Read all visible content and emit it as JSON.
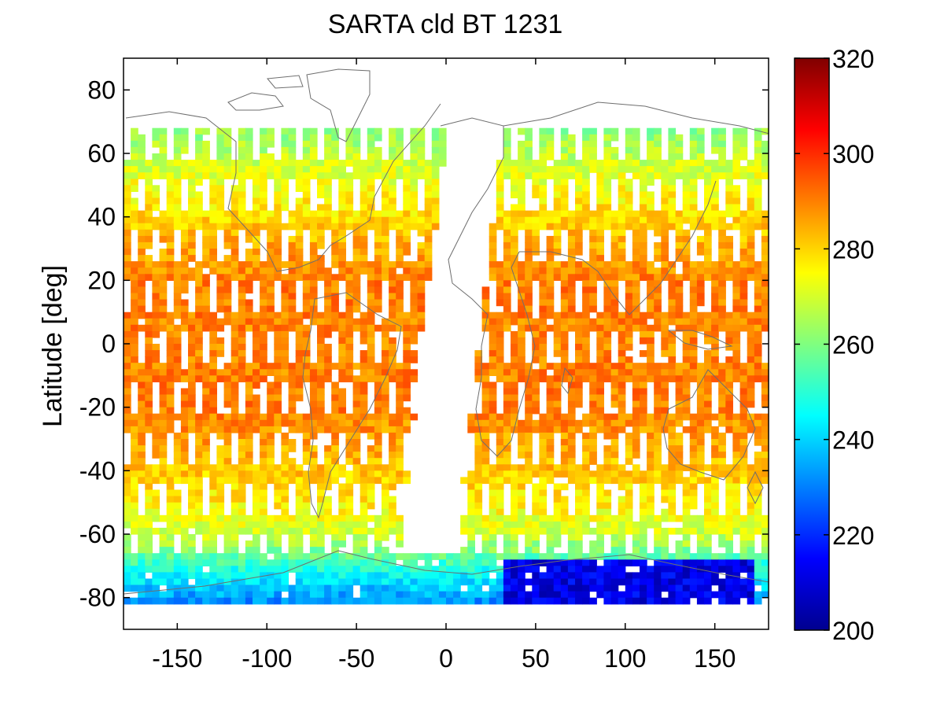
{
  "chart_data": {
    "type": "heatmap",
    "title": "SARTA cld BT 1231",
    "xlabel": "",
    "ylabel": "Latitude [deg]",
    "xlim": [
      -180,
      180
    ],
    "ylim": [
      -90,
      90
    ],
    "x_ticks": [
      -150,
      -100,
      -50,
      0,
      50,
      100,
      150
    ],
    "y_ticks": [
      80,
      60,
      40,
      20,
      0,
      -20,
      -40,
      -60,
      -80
    ],
    "colorbar": {
      "colormap": "jet",
      "range": [
        200,
        320
      ],
      "ticks": [
        320,
        300,
        280,
        260,
        240,
        220,
        200
      ]
    },
    "data_lat_range": [
      -82,
      68
    ],
    "swath_gap_lon": [
      2,
      30
    ],
    "grid": false,
    "overlay": "coastlines",
    "zonal_profile": [
      {
        "lat": 68,
        "value": 262
      },
      {
        "lat": 60,
        "value": 268
      },
      {
        "lat": 50,
        "value": 274
      },
      {
        "lat": 40,
        "value": 280
      },
      {
        "lat": 30,
        "value": 286
      },
      {
        "lat": 20,
        "value": 290
      },
      {
        "lat": 10,
        "value": 290
      },
      {
        "lat": 0,
        "value": 289
      },
      {
        "lat": -10,
        "value": 290
      },
      {
        "lat": -20,
        "value": 290
      },
      {
        "lat": -30,
        "value": 286
      },
      {
        "lat": -40,
        "value": 281
      },
      {
        "lat": -50,
        "value": 276
      },
      {
        "lat": -60,
        "value": 268
      },
      {
        "lat": -65,
        "value": 258
      },
      {
        "lat": -70,
        "value": 248
      },
      {
        "lat": -75,
        "value": 240
      },
      {
        "lat": -80,
        "value": 232
      }
    ],
    "cold_region": {
      "lon": [
        30,
        170
      ],
      "lat": [
        -82,
        -66
      ],
      "value": 212
    }
  }
}
